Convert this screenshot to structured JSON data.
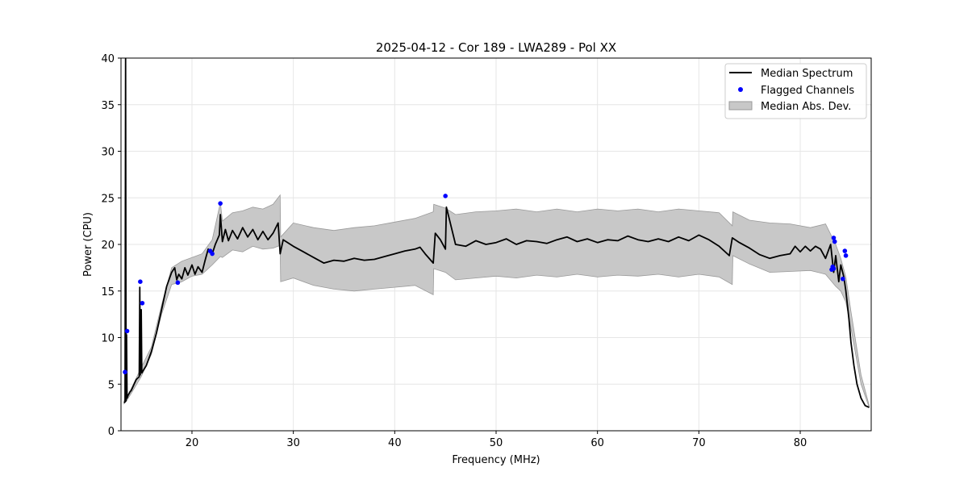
{
  "chart_data": {
    "type": "line",
    "title": "2025-04-12 - Cor 189 - LWA289 - Pol XX",
    "xlabel": "Frequency (MHz)",
    "ylabel": "Power (CPU)",
    "xlim": [
      13,
      87
    ],
    "ylim": [
      0,
      40
    ],
    "xticks": [
      20,
      30,
      40,
      50,
      60,
      70,
      80
    ],
    "yticks": [
      0,
      5,
      10,
      15,
      20,
      25,
      30,
      35,
      40
    ],
    "grid": true,
    "legend_position": "top-right",
    "colors": {
      "median": "#000000",
      "flagged": "#0000ff",
      "mad_fill": "#c8c8c8",
      "mad_edge": "#999999"
    },
    "series": [
      {
        "name": "Median Spectrum",
        "kind": "line",
        "x": [
          13.3,
          13.4,
          13.45,
          13.5,
          13.55,
          13.6,
          13.7,
          13.8,
          13.9,
          14.0,
          14.5,
          14.8,
          14.85,
          14.9,
          15.0,
          15.05,
          15.1,
          15.5,
          16.0,
          16.5,
          17.0,
          17.5,
          18.0,
          18.3,
          18.5,
          18.7,
          19.0,
          19.3,
          19.6,
          20.0,
          20.3,
          20.6,
          21.0,
          21.3,
          21.6,
          22.0,
          22.3,
          22.5,
          22.7,
          22.8,
          23.0,
          23.3,
          23.6,
          24.0,
          24.5,
          25.0,
          25.5,
          26.0,
          26.5,
          27.0,
          27.5,
          28.0,
          28.5,
          28.7,
          29.0,
          30.0,
          31.0,
          32.0,
          33.0,
          34.0,
          35.0,
          36.0,
          37.0,
          38.0,
          39.0,
          40.0,
          41.0,
          42.0,
          42.5,
          43.0,
          43.8,
          44.0,
          44.5,
          45.0,
          45.1,
          46.0,
          47.0,
          48.0,
          49.0,
          50.0,
          51.0,
          52.0,
          53.0,
          54.0,
          55.0,
          56.0,
          57.0,
          58.0,
          59.0,
          60.0,
          61.0,
          62.0,
          63.0,
          64.0,
          65.0,
          66.0,
          67.0,
          68.0,
          69.0,
          70.0,
          71.0,
          72.0,
          73.0,
          73.3,
          74.0,
          75.0,
          76.0,
          77.0,
          78.0,
          79.0,
          79.5,
          80.0,
          80.5,
          81.0,
          81.5,
          82.0,
          82.5,
          83.0,
          83.3,
          83.5,
          83.8,
          84.0,
          84.3,
          84.5,
          84.8,
          85.0,
          85.3,
          85.6,
          86.0,
          86.4,
          86.8
        ],
        "y": [
          3.0,
          3.1,
          40.0,
          3.2,
          10.3,
          3.5,
          3.8,
          4.0,
          4.2,
          4.3,
          5.5,
          5.8,
          15.4,
          6.0,
          13.0,
          6.2,
          6.3,
          7.0,
          8.5,
          10.5,
          13.0,
          15.5,
          17.0,
          17.5,
          16.2,
          16.8,
          16.3,
          17.5,
          16.7,
          17.8,
          16.8,
          17.6,
          17.0,
          18.3,
          19.5,
          19.0,
          20.0,
          20.5,
          21.0,
          23.2,
          20.3,
          21.6,
          20.4,
          21.5,
          20.6,
          21.8,
          20.8,
          21.6,
          20.5,
          21.4,
          20.5,
          21.2,
          22.3,
          19.0,
          20.5,
          19.8,
          19.2,
          18.6,
          18.0,
          18.3,
          18.2,
          18.5,
          18.3,
          18.4,
          18.7,
          19.0,
          19.3,
          19.5,
          19.7,
          19.0,
          18.0,
          21.2,
          20.5,
          19.5,
          24.0,
          20.0,
          19.8,
          20.4,
          20.0,
          20.2,
          20.6,
          20.0,
          20.4,
          20.3,
          20.1,
          20.5,
          20.8,
          20.3,
          20.6,
          20.2,
          20.5,
          20.4,
          20.9,
          20.5,
          20.3,
          20.6,
          20.3,
          20.8,
          20.4,
          21.0,
          20.5,
          19.8,
          18.8,
          20.7,
          20.2,
          19.6,
          18.9,
          18.5,
          18.8,
          19.0,
          19.8,
          19.2,
          19.8,
          19.3,
          19.8,
          19.5,
          18.5,
          20.0,
          17.0,
          18.8,
          16.0,
          17.8,
          16.5,
          15.0,
          12.0,
          9.5,
          7.0,
          5.0,
          3.5,
          2.7,
          2.5
        ]
      },
      {
        "name": "Median Abs. Dev.",
        "kind": "band",
        "x": [
          13.3,
          13.6,
          14.0,
          15.0,
          16.0,
          17.0,
          18.0,
          19.0,
          20.0,
          21.0,
          22.0,
          22.8,
          23.0,
          24.0,
          25.0,
          26.0,
          27.0,
          28.0,
          28.7,
          28.75,
          30.0,
          32.0,
          34.0,
          36.0,
          38.0,
          40.0,
          42.0,
          43.8,
          43.85,
          45.0,
          46.0,
          48.0,
          50.0,
          52.0,
          54.0,
          56.0,
          58.0,
          60.0,
          62.0,
          64.0,
          66.0,
          68.0,
          70.0,
          72.0,
          73.3,
          73.35,
          75.0,
          77.0,
          79.0,
          81.0,
          82.5,
          83.5,
          84.0,
          84.5,
          85.0,
          86.0,
          86.8
        ],
        "lower": [
          2.9,
          3.3,
          4.0,
          5.8,
          8.2,
          12.5,
          15.7,
          16.0,
          16.6,
          16.8,
          17.8,
          18.7,
          18.6,
          19.4,
          19.2,
          19.8,
          19.5,
          19.6,
          19.9,
          16.0,
          16.4,
          15.6,
          15.2,
          15.0,
          15.2,
          15.4,
          15.6,
          14.6,
          17.4,
          17.0,
          16.2,
          16.4,
          16.6,
          16.4,
          16.7,
          16.5,
          16.8,
          16.5,
          16.7,
          16.6,
          16.8,
          16.5,
          16.8,
          16.5,
          15.7,
          18.8,
          17.9,
          17.0,
          17.1,
          17.2,
          16.8,
          15.5,
          15.0,
          13.8,
          11.0,
          5.0,
          2.5
        ],
        "upper": [
          3.2,
          3.7,
          4.5,
          6.8,
          9.0,
          13.5,
          17.5,
          18.2,
          18.6,
          19.0,
          20.5,
          24.5,
          22.5,
          23.4,
          23.6,
          24.0,
          23.8,
          24.3,
          25.3,
          20.8,
          22.3,
          21.8,
          21.5,
          21.8,
          22.0,
          22.4,
          22.8,
          23.5,
          24.3,
          23.9,
          23.2,
          23.5,
          23.6,
          23.8,
          23.5,
          23.8,
          23.5,
          23.8,
          23.6,
          23.8,
          23.5,
          23.8,
          23.6,
          23.4,
          22.0,
          23.5,
          22.6,
          22.3,
          22.2,
          21.8,
          22.2,
          20.0,
          18.5,
          16.5,
          12.8,
          6.0,
          2.7
        ]
      },
      {
        "name": "Flagged Channels",
        "kind": "scatter",
        "x": [
          13.4,
          13.6,
          14.9,
          15.1,
          18.6,
          21.8,
          22.0,
          22.8,
          45.0,
          83.1,
          83.2,
          83.3,
          83.4,
          83.3,
          84.2,
          84.4,
          84.5
        ],
        "y": [
          6.3,
          10.7,
          16.0,
          13.7,
          15.9,
          19.3,
          19.0,
          24.4,
          25.2,
          17.3,
          17.6,
          20.7,
          20.3,
          17.4,
          16.3,
          19.3,
          18.8
        ]
      }
    ],
    "legend": [
      "Median Spectrum",
      "Flagged Channels",
      "Median Abs. Dev."
    ]
  }
}
